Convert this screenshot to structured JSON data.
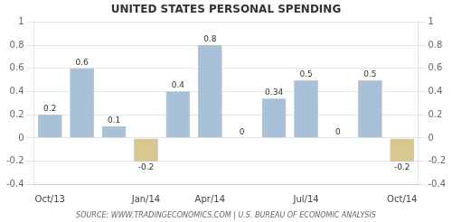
{
  "chart_data": {
    "type": "bar",
    "title": "UNITED STATES PERSONAL SPENDING",
    "subtitle": "SOURCE: WWW.TRADINGECONOMICS.COM | U.S. BUREAU OF ECONOMIC ANALYSIS",
    "categories": [
      "Oct/13",
      null,
      null,
      "Jan/14",
      null,
      "Apr/14",
      null,
      null,
      "Jul/14",
      null,
      null,
      "Oct/14"
    ],
    "values": [
      0.2,
      0.6,
      0.1,
      -0.2,
      0.4,
      0.8,
      0.0,
      0.34,
      0.5,
      0.0,
      0.5,
      -0.2
    ],
    "colors": [
      "#a8c0d8",
      "#a8c0d8",
      "#a8c0d8",
      "#d8c890",
      "#a8c0d8",
      "#a8c0d8",
      "#a8c0d8",
      "#a8c0d8",
      "#a8c0d8",
      "#a8c0d8",
      "#a8c0d8",
      "#d8c890"
    ],
    "ylim": [
      -0.4,
      1.0
    ],
    "yticks": [
      -0.4,
      -0.2,
      0.0,
      0.2,
      0.4,
      0.6,
      0.8,
      1.0
    ],
    "y2lim": [
      -0.4,
      1.0
    ],
    "y2ticks": [
      -0.4,
      -0.2,
      0.0,
      0.2,
      0.4,
      0.6,
      0.8,
      1.0
    ],
    "grid": true,
    "data_labels": true
  }
}
